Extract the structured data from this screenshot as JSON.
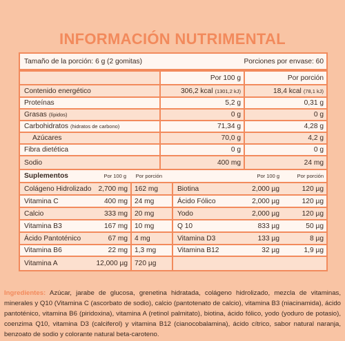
{
  "title": "INFORMACIÓN NUTRIMENTAL",
  "serving": {
    "size": "Tamaño de la porción: 6 g (2 gomitas)",
    "per_container": "Porciones por envase: 60"
  },
  "headers": {
    "per100": "Por 100 g",
    "per_portion": "Por porción"
  },
  "nutrients": [
    {
      "name": "Contenido energético",
      "per100": "306,2 kcal",
      "per100_sub": "(1301,2 kJ)",
      "portion": "18,4 kcal",
      "portion_sub": "(78,1 kJ)"
    },
    {
      "name": "Proteínas",
      "per100": "5,2 g",
      "portion": "0,31 g"
    },
    {
      "name": "Grasas",
      "name_sub": "(lípidos)",
      "per100": "0 g",
      "portion": "0 g"
    },
    {
      "name": "Carbohidratos",
      "name_sub": "(hidratos de carbono)",
      "per100": "71,34 g",
      "portion": "4,28 g"
    },
    {
      "name": "Azúcares",
      "per100": "70,0 g",
      "portion": "4,2 g"
    },
    {
      "name": "Fibra dietética",
      "per100": "0 g",
      "portion": "0 g"
    },
    {
      "name": "Sodio",
      "per100": "400 mg",
      "portion": "24 mg"
    }
  ],
  "supplements": {
    "title": "Suplementos",
    "h_per100": "Por 100 g",
    "h_portion": "Por porción",
    "left": [
      {
        "name": "Colágeno Hidrolizado",
        "per100": "2,700 mg",
        "portion": "162 mg"
      },
      {
        "name": "Vitamina C",
        "per100": "400 mg",
        "portion": "24 mg"
      },
      {
        "name": "Calcio",
        "per100": "333 mg",
        "portion": "20 mg"
      },
      {
        "name": "Vitamina B3",
        "per100": "167 mg",
        "portion": "10 mg"
      },
      {
        "name": "Ácido Pantoténico",
        "per100": "67 mg",
        "portion": "4 mg"
      },
      {
        "name": "Vitamina B6",
        "per100": "22 mg",
        "portion": "1,3 mg"
      },
      {
        "name": "Vitamina A",
        "per100": "12,000 µg",
        "portion": "720 µg"
      }
    ],
    "right": [
      {
        "name": "Biotina",
        "per100": "2,000 µg",
        "portion": "120 µg"
      },
      {
        "name": "Ácido Fólico",
        "per100": "2,000 µg",
        "portion": "120 µg"
      },
      {
        "name": "Yodo",
        "per100": "2,000 µg",
        "portion": "120 µg"
      },
      {
        "name": "Q 10",
        "per100": "833 µg",
        "portion": "50 µg"
      },
      {
        "name": "Vitamina D3",
        "per100": "133 µg",
        "portion": "8 µg"
      },
      {
        "name": "Vitamina B12",
        "per100": "32 µg",
        "portion": "1,9 µg"
      }
    ]
  },
  "ingredients": {
    "label": "Ingredientes:",
    "text": " Azúcar, jarabe de glucosa, grenetina hidratada, colágeno hidrolizado, mezcla de vitaminas, minerales y Q10 (Vitamina C (ascorbato de sodio), calcio (pantotenato de calcio), vitamina B3 (niacinamida), ácido pantoténico, vitamina B6 (piridoxina), vitamina A (retinol palmitato), biotina, ácido fólico, yodo (yoduro de potasio), coenzima Q10, vitamina D3 (calciferol) y vitamina B12 (cianocobalamina), ácido cítrico, sabor natural naranja, benzoato de sodio y colorante natural beta-caroteno."
  },
  "colors": {
    "background": "#f9c4a4",
    "accent": "#f28a5c",
    "cell_light": "#fce0cf",
    "cell_white": "#fff6f0"
  }
}
